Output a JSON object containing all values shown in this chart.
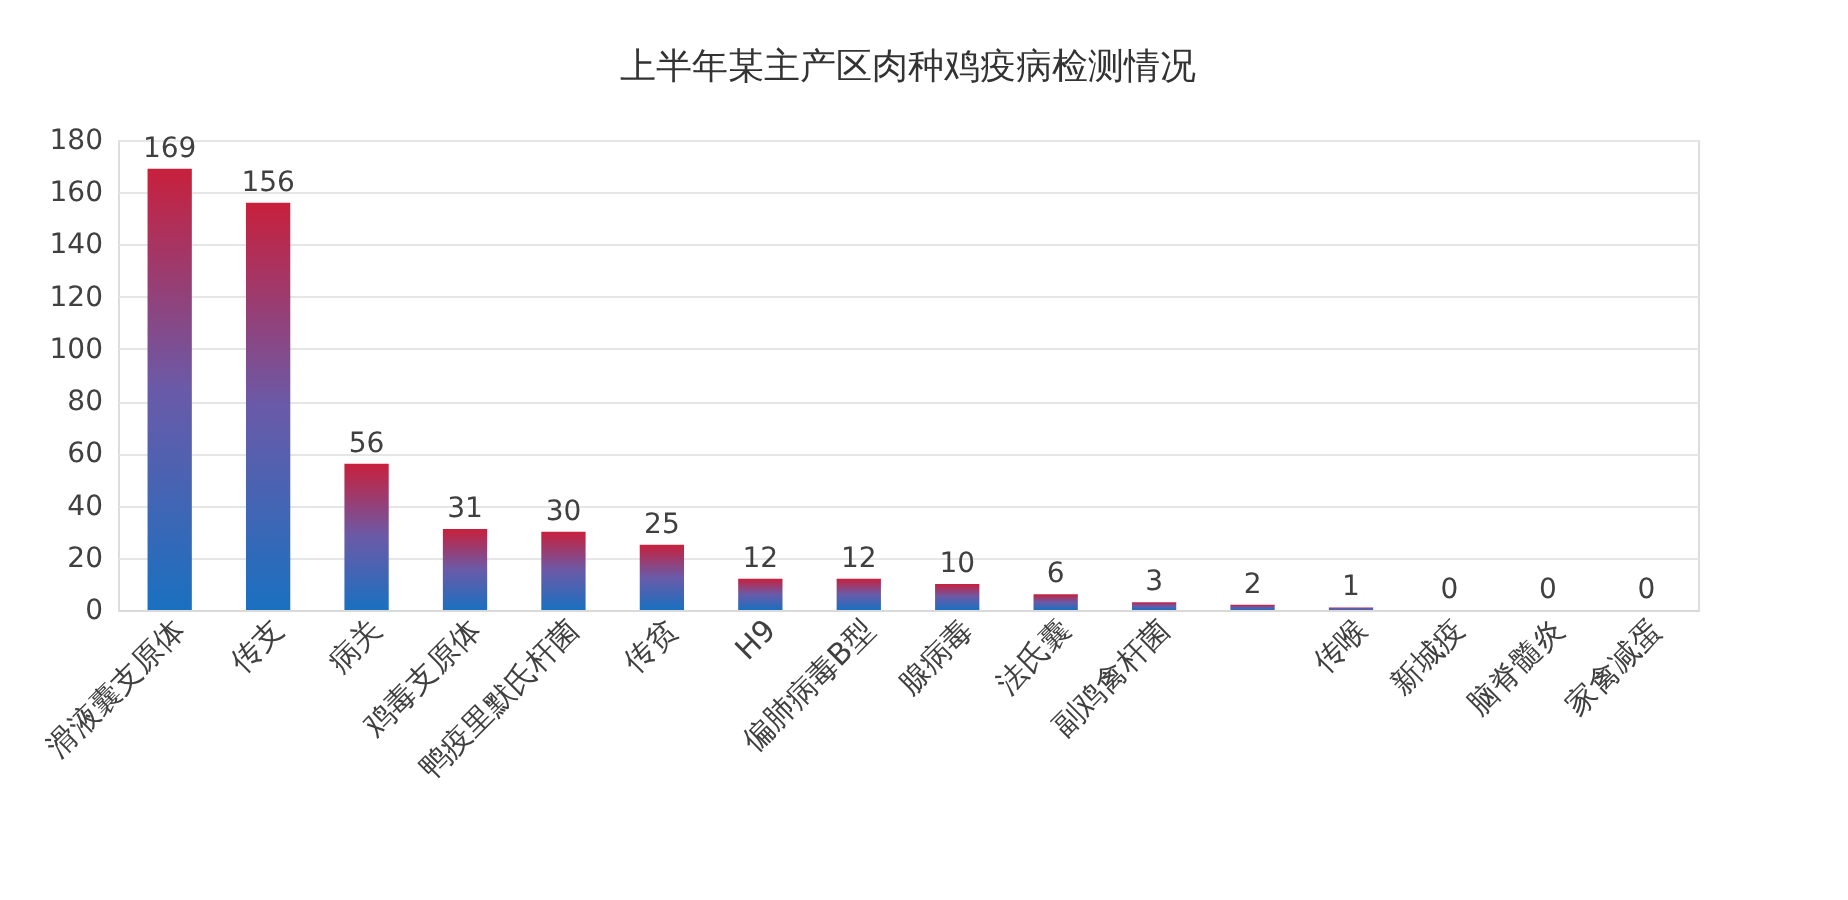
{
  "chart_data": {
    "type": "bar",
    "title": "上半年某主产区肉种鸡疫病检测情况",
    "categories": [
      "滑液囊支原体",
      "传支",
      "病关",
      "鸡毒支原体",
      "鸭疫里默氏杆菌",
      "传贫",
      "H9",
      "偏肺病毒B型",
      "腺病毒",
      "法氏囊",
      "副鸡禽杆菌",
      null,
      "传喉",
      "新城疫",
      "脑脊髓炎",
      "家禽减蛋"
    ],
    "values": [
      169,
      156,
      56,
      31,
      30,
      25,
      12,
      12,
      10,
      6,
      3,
      2,
      1,
      0,
      0,
      0
    ],
    "ylim": [
      0,
      180
    ],
    "yticks": [
      0,
      20,
      40,
      60,
      80,
      100,
      120,
      140,
      160,
      180
    ],
    "grid": "y",
    "data_labels": true
  }
}
